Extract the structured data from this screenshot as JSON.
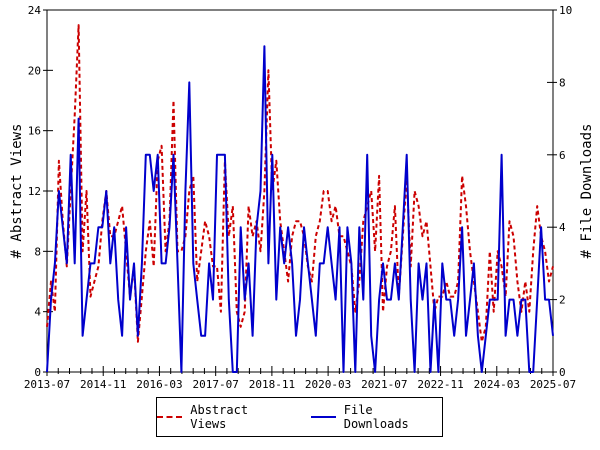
{
  "chart_data": {
    "type": "line",
    "x_labels": [
      "2013-07",
      "2014-11",
      "2016-03",
      "2017-07",
      "2018-11",
      "2020-03",
      "2021-07",
      "2022-11",
      "2024-03",
      "2025-07"
    ],
    "x_range": [
      "2013-07",
      "2025-07"
    ],
    "ylabel_left": "# Abstract Views",
    "ylabel_right": "# File Downloads",
    "ylim_left": [
      0,
      24
    ],
    "ylim_right": [
      0,
      10
    ],
    "yticks_left": [
      0,
      4,
      8,
      12,
      16,
      20,
      24
    ],
    "yticks_right": [
      0,
      2,
      4,
      6,
      8,
      10
    ],
    "grid": false,
    "legend_placement": "bottom-center",
    "series": [
      {
        "name": "Abstract Views",
        "axis": "left",
        "color": "#cc0000",
        "style": "dashed",
        "values": [
          3,
          6,
          4,
          14,
          10,
          7,
          12,
          17,
          23,
          8,
          12,
          5,
          6,
          7,
          10,
          12,
          9,
          9,
          10,
          11,
          8,
          5,
          7,
          2,
          5,
          8,
          10,
          7,
          14,
          15,
          8,
          10,
          18,
          8,
          8,
          9,
          12,
          13,
          6,
          8,
          10,
          9,
          7,
          7,
          4,
          14,
          9,
          11,
          4,
          3,
          4,
          11,
          9,
          10,
          8,
          12,
          20,
          12,
          14,
          10,
          8,
          6,
          9,
          10,
          10,
          9,
          7,
          6,
          9,
          10,
          12,
          12,
          10,
          11,
          9,
          9,
          8,
          7,
          4,
          6,
          10,
          11,
          12,
          8,
          13,
          4,
          7,
          8,
          11,
          5,
          9,
          13,
          7,
          12,
          11,
          9,
          10,
          7,
          4,
          5,
          5,
          6,
          5,
          5,
          6,
          13,
          11,
          8,
          6,
          4,
          2,
          3,
          8,
          4,
          8,
          7,
          5,
          10,
          9,
          6,
          4,
          6,
          4,
          8,
          11,
          9,
          8,
          6,
          7
        ]
      },
      {
        "name": "File Downloads",
        "axis": "right",
        "color": "#0000cc",
        "style": "solid",
        "values": [
          0,
          2,
          3,
          5,
          4,
          3,
          6,
          3,
          7,
          1,
          2,
          3,
          3,
          4,
          4,
          5,
          3,
          4,
          2,
          1,
          4,
          2,
          3,
          1,
          3,
          6,
          6,
          5,
          6,
          3,
          3,
          4,
          6,
          3,
          0,
          5,
          8,
          3,
          2,
          1,
          1,
          3,
          2,
          6,
          6,
          6,
          2,
          0,
          0,
          4,
          2,
          3,
          1,
          4,
          5,
          9,
          3,
          6,
          2,
          4,
          3,
          4,
          3,
          1,
          2,
          4,
          3,
          2,
          1,
          3,
          3,
          4,
          3,
          2,
          4,
          0,
          4,
          3,
          0,
          4,
          2,
          6,
          1,
          0,
          2,
          3,
          2,
          2,
          3,
          2,
          4,
          6,
          2,
          0,
          3,
          2,
          3,
          0,
          2,
          0,
          3,
          2,
          2,
          1,
          2,
          4,
          1,
          2,
          3,
          1,
          0,
          1,
          2,
          2,
          2,
          6,
          1,
          2,
          2,
          1,
          2,
          2,
          0,
          0,
          2,
          4,
          2,
          2,
          1
        ]
      }
    ]
  }
}
